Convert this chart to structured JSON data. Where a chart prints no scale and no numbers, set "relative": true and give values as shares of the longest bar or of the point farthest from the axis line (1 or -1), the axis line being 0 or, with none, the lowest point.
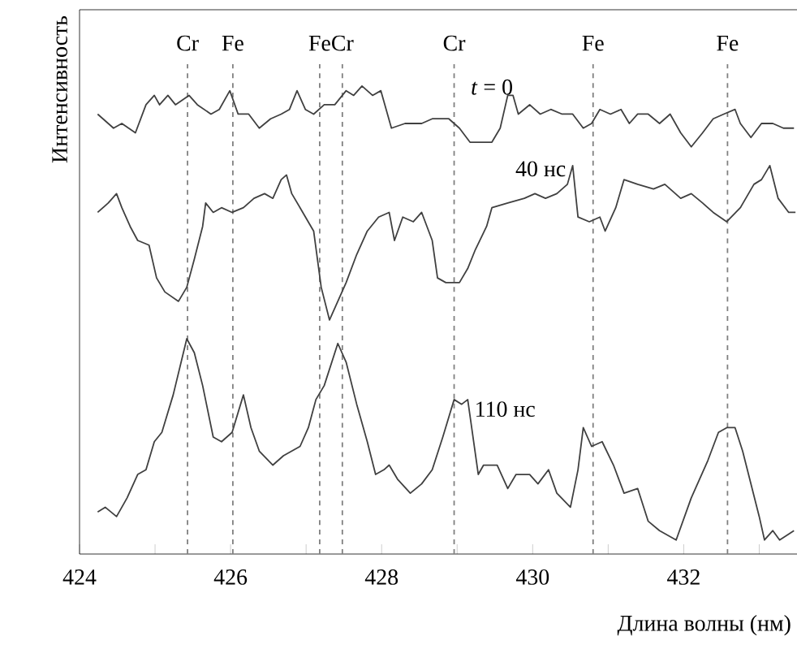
{
  "chart_data": {
    "type": "line",
    "relative": true,
    "xlabel": "Длина волны (нм)",
    "ylabel": "Интенсивность",
    "xlim": [
      424,
      433.5
    ],
    "xticks": [
      424,
      {
        "value": 425,
        "label": null
      },
      426,
      {
        "value": 427,
        "label": null
      },
      428,
      {
        "value": 429,
        "label": null
      },
      430,
      {
        "value": 431,
        "label": null
      },
      432,
      {
        "value": 433,
        "label": null
      }
    ],
    "series": [
      {
        "color": "#404040",
        "x": [
          424.24,
          424.45,
          424.56,
          424.74,
          424.88,
          424.99,
          425.06,
          425.17,
          425.27,
          425.45,
          425.56,
          425.74,
          425.85,
          425.99,
          426.1,
          426.24,
          426.38,
          426.53,
          426.67,
          426.78,
          426.88,
          426.99,
          427.1,
          427.24,
          427.38,
          427.53,
          427.63,
          427.74,
          427.88,
          427.99,
          428.13,
          428.31,
          428.53,
          428.67,
          428.89,
          429.03,
          429.17,
          429.31,
          429.46,
          429.57,
          429.67,
          429.74,
          429.81,
          429.96,
          430.1,
          430.24,
          430.39,
          430.53,
          430.67,
          430.78,
          430.89,
          431.03,
          431.17,
          431.28,
          431.39,
          431.53,
          431.68,
          431.82,
          431.96,
          432.1,
          432.25,
          432.39,
          432.53,
          432.68,
          432.75,
          432.89,
          433.03,
          433.18,
          433.32,
          433.46
        ],
        "values": [
          0.94,
          0.91,
          0.92,
          0.9,
          0.96,
          0.98,
          0.96,
          0.98,
          0.96,
          0.98,
          0.96,
          0.94,
          0.95,
          0.99,
          0.94,
          0.94,
          0.91,
          0.93,
          0.94,
          0.95,
          0.99,
          0.95,
          0.94,
          0.96,
          0.96,
          0.99,
          0.98,
          1.0,
          0.98,
          0.99,
          0.91,
          0.92,
          0.92,
          0.93,
          0.93,
          0.91,
          0.88,
          0.88,
          0.88,
          0.91,
          0.98,
          0.98,
          0.94,
          0.96,
          0.94,
          0.95,
          0.94,
          0.94,
          0.91,
          0.92,
          0.95,
          0.94,
          0.95,
          0.92,
          0.94,
          0.94,
          0.92,
          0.94,
          0.9,
          0.87,
          0.9,
          0.93,
          0.94,
          0.95,
          0.92,
          0.89,
          0.92,
          0.92,
          0.91,
          0.91
        ]
      },
      {
        "color": "#404040",
        "x": [
          424.24,
          424.38,
          424.49,
          424.56,
          424.67,
          424.77,
          424.92,
          425.02,
          425.13,
          425.31,
          425.42,
          425.52,
          425.63,
          425.67,
          425.77,
          425.88,
          426.02,
          426.17,
          426.31,
          426.45,
          426.56,
          426.67,
          426.74,
          426.81,
          426.92,
          427.1,
          427.2,
          427.31,
          427.42,
          427.53,
          427.67,
          427.81,
          427.96,
          428.1,
          428.17,
          428.28,
          428.42,
          428.53,
          428.67,
          428.74,
          428.85,
          429.03,
          429.14,
          429.24,
          429.39,
          429.46,
          429.67,
          429.89,
          430.03,
          430.17,
          430.32,
          430.46,
          430.53,
          430.6,
          430.75,
          430.89,
          430.96,
          431.1,
          431.21,
          431.39,
          431.6,
          431.75,
          431.96,
          432.1,
          432.25,
          432.39,
          432.57,
          432.75,
          432.93,
          433.03,
          433.14,
          433.25,
          433.39,
          433.48
        ],
        "values": [
          0.73,
          0.75,
          0.77,
          0.74,
          0.7,
          0.67,
          0.66,
          0.59,
          0.56,
          0.54,
          0.57,
          0.63,
          0.7,
          0.75,
          0.73,
          0.74,
          0.73,
          0.74,
          0.76,
          0.77,
          0.76,
          0.8,
          0.81,
          0.77,
          0.74,
          0.69,
          0.57,
          0.5,
          0.54,
          0.58,
          0.64,
          0.69,
          0.72,
          0.73,
          0.67,
          0.72,
          0.71,
          0.73,
          0.67,
          0.59,
          0.58,
          0.58,
          0.61,
          0.65,
          0.7,
          0.74,
          0.75,
          0.76,
          0.77,
          0.76,
          0.77,
          0.79,
          0.83,
          0.72,
          0.71,
          0.72,
          0.69,
          0.74,
          0.8,
          0.79,
          0.78,
          0.79,
          0.76,
          0.77,
          0.75,
          0.73,
          0.71,
          0.74,
          0.79,
          0.8,
          0.83,
          0.76,
          0.73,
          0.73
        ]
      },
      {
        "color": "#404040",
        "x": [
          424.24,
          424.34,
          424.49,
          424.63,
          424.77,
          424.88,
          424.99,
          425.09,
          425.24,
          425.42,
          425.52,
          425.63,
          425.77,
          425.88,
          426.02,
          426.17,
          426.27,
          426.38,
          426.56,
          426.7,
          426.81,
          426.92,
          427.03,
          427.13,
          427.24,
          427.42,
          427.53,
          427.67,
          427.81,
          427.92,
          428.03,
          428.1,
          428.21,
          428.38,
          428.53,
          428.67,
          428.81,
          428.96,
          429.06,
          429.14,
          429.28,
          429.35,
          429.53,
          429.67,
          429.78,
          429.96,
          430.07,
          430.21,
          430.32,
          430.5,
          430.6,
          430.67,
          430.78,
          430.92,
          431.07,
          431.21,
          431.39,
          431.53,
          431.68,
          431.9,
          432.1,
          432.32,
          432.46,
          432.57,
          432.68,
          432.78,
          432.89,
          433.0,
          433.07,
          433.18,
          433.27,
          433.46
        ],
        "values": [
          0.09,
          0.1,
          0.08,
          0.12,
          0.17,
          0.18,
          0.24,
          0.26,
          0.34,
          0.46,
          0.43,
          0.36,
          0.25,
          0.24,
          0.26,
          0.34,
          0.27,
          0.22,
          0.19,
          0.21,
          0.22,
          0.23,
          0.27,
          0.33,
          0.36,
          0.45,
          0.41,
          0.32,
          0.24,
          0.17,
          0.18,
          0.19,
          0.16,
          0.13,
          0.15,
          0.18,
          0.25,
          0.33,
          0.32,
          0.33,
          0.17,
          0.19,
          0.19,
          0.14,
          0.17,
          0.17,
          0.15,
          0.18,
          0.13,
          0.1,
          0.18,
          0.27,
          0.23,
          0.24,
          0.19,
          0.13,
          0.14,
          0.07,
          0.05,
          0.03,
          0.12,
          0.2,
          0.26,
          0.27,
          0.27,
          0.22,
          0.15,
          0.08,
          0.03,
          0.05,
          0.03,
          0.05
        ]
      }
    ],
    "ref_lines": [
      {
        "axis": "x",
        "value": 425.43,
        "label": "Cr",
        "color": "#808080",
        "line_style": "dashed"
      },
      {
        "axis": "x",
        "value": 426.03,
        "label": "Fe",
        "color": "#808080",
        "line_style": "dashed"
      },
      {
        "axis": "x",
        "value": 427.18,
        "label": "Fe",
        "color": "#808080",
        "line_style": "dashed"
      },
      {
        "axis": "x",
        "value": 427.48,
        "label": "Cr",
        "color": "#808080",
        "line_style": "dashed"
      },
      {
        "axis": "x",
        "value": 428.96,
        "label": "Cr",
        "color": "#808080",
        "line_style": "dashed"
      },
      {
        "axis": "x",
        "value": 430.8,
        "label": "Fe",
        "color": "#808080",
        "line_style": "dashed"
      },
      {
        "axis": "x",
        "value": 432.58,
        "label": "Fe",
        "color": "#808080",
        "line_style": "dashed"
      }
    ],
    "annotations": [
      {
        "text": "*t* = 0",
        "x": 429.46,
        "y": 0.88
      },
      {
        "text": "40 нс",
        "x": 430.53,
        "y": 0.83
      },
      {
        "text": "110 нс",
        "x": 429.14,
        "y": 0.33
      }
    ]
  }
}
